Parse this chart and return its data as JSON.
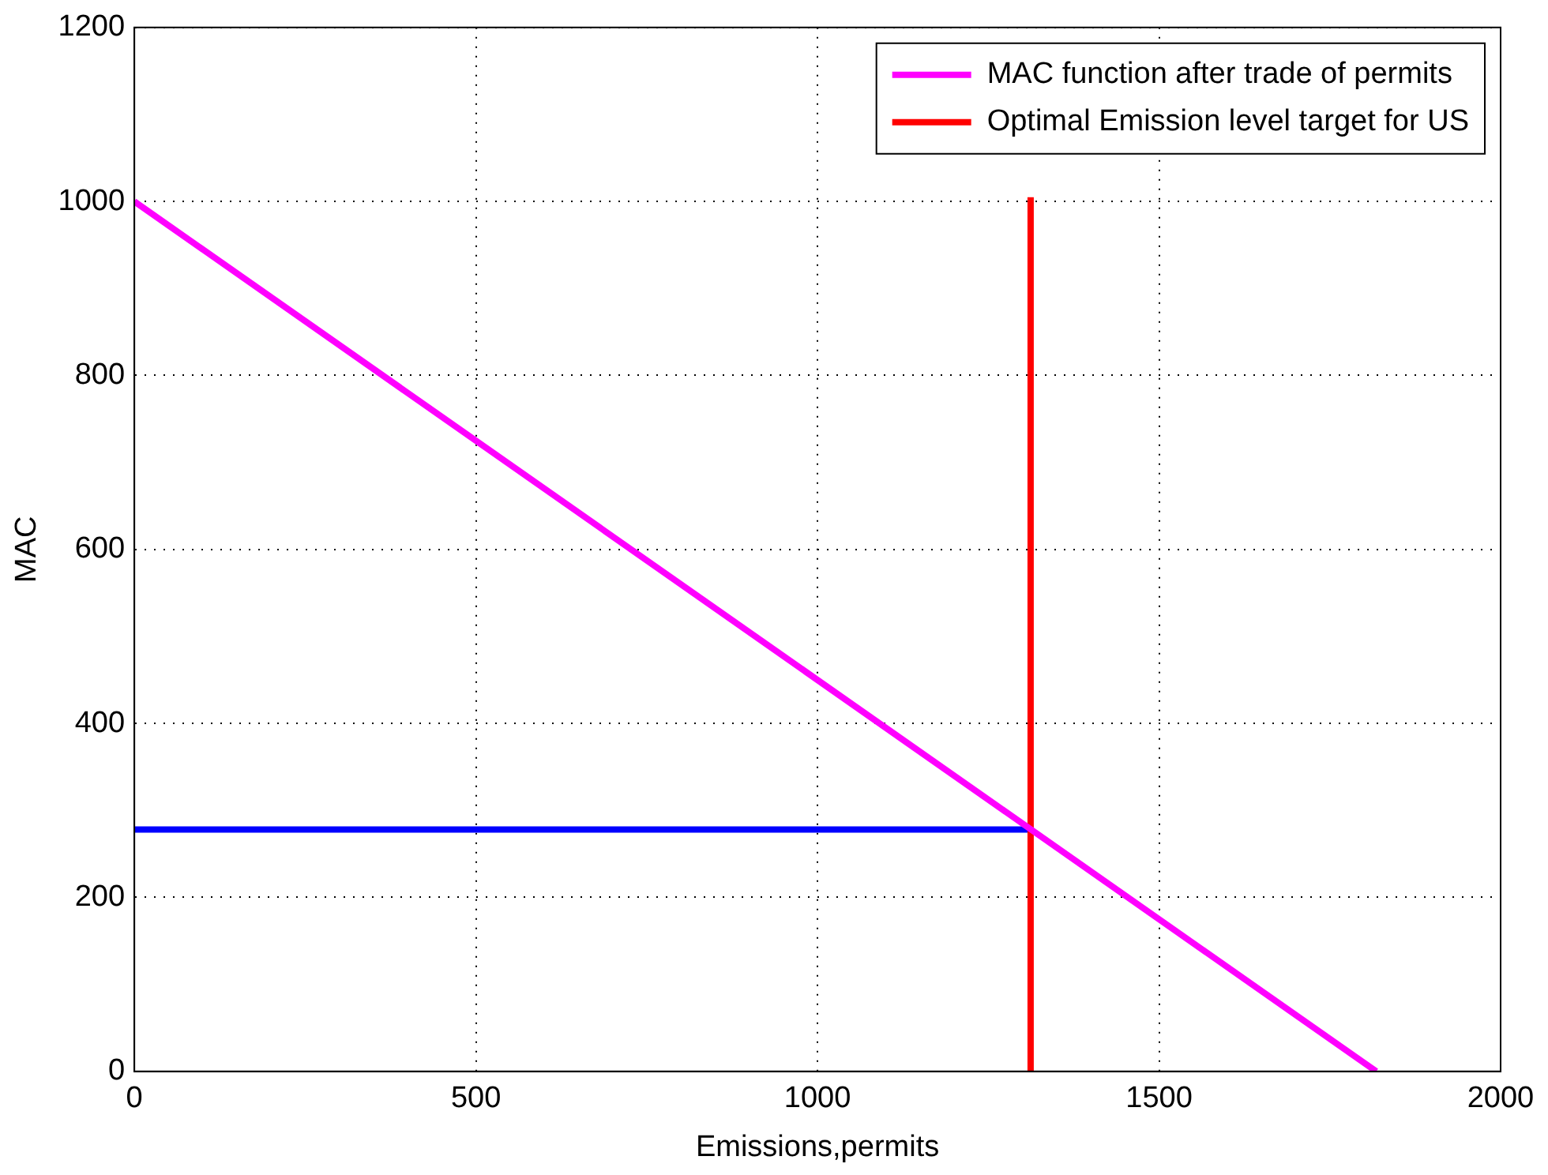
{
  "chart_data": {
    "type": "line",
    "xlabel": "Emissions,permits",
    "ylabel": "MAC",
    "xlim": [
      0,
      2000
    ],
    "xticks": [
      0,
      500,
      1000,
      1500,
      2000
    ],
    "ylim": [
      0,
      1200
    ],
    "yticks": [
      0,
      200,
      400,
      600,
      800,
      1000,
      1200
    ],
    "grid": true,
    "legend": "top right",
    "line_style": "solid",
    "marker": "none",
    "series": [
      {
        "name": "MAC function after trade of permits",
        "color": "#ff00ff",
        "x": [
          0,
          1818
        ],
        "values": [
          1000,
          0
        ]
      },
      {
        "name": "Optimal Emission level target for US",
        "color": "#ff0000",
        "x": [
          1312,
          1312
        ],
        "values": [
          0,
          1005
        ]
      },
      {
        "color": "#0000ff",
        "x": [
          0,
          1312
        ],
        "values": [
          278,
          278
        ]
      }
    ]
  }
}
